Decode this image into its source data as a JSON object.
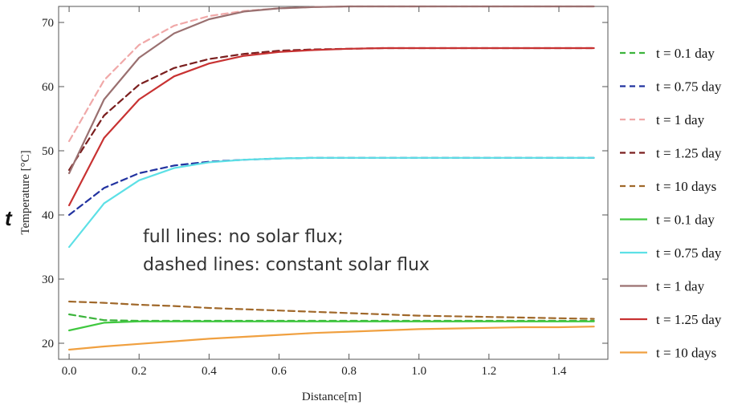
{
  "chart_data": {
    "type": "line",
    "title": "",
    "xlabel": "Distance[m]",
    "ylabel": "Temperature [°C]",
    "xlim": [
      -0.03,
      1.54
    ],
    "ylim": [
      17.5,
      72.5
    ],
    "xticks": [
      "0.0",
      "0.2",
      "0.4",
      "0.6",
      "0.8",
      "1.0",
      "1.2",
      "1.4"
    ],
    "yticks": [
      "20",
      "30",
      "40",
      "50",
      "60",
      "70"
    ],
    "grid": false,
    "legend_position": "right",
    "annotation": [
      "full lines: no solar flux;",
      "dashed lines: constant solar flux"
    ],
    "stray_text": "t",
    "x": [
      0,
      0.1,
      0.2,
      0.3,
      0.4,
      0.5,
      0.6,
      0.7,
      0.8,
      0.9,
      1.0,
      1.1,
      1.2,
      1.3,
      1.4,
      1.5
    ],
    "series": [
      {
        "name": "t = 0.1 day",
        "style": "dashed",
        "color": "#3cb43c",
        "values": [
          24.5,
          23.6,
          23.5,
          23.5,
          23.5,
          23.5,
          23.5,
          23.5,
          23.5,
          23.5,
          23.5,
          23.5,
          23.5,
          23.5,
          23.5,
          23.5
        ]
      },
      {
        "name": "t = 0.75 day",
        "style": "dashed",
        "color": "#2233a0",
        "values": [
          40.0,
          44.2,
          46.5,
          47.7,
          48.3,
          48.6,
          48.8,
          48.9,
          48.9,
          48.9,
          48.9,
          48.9,
          48.9,
          48.9,
          48.9,
          48.9
        ]
      },
      {
        "name": "t = 1 day",
        "style": "dashed",
        "color": "#f0a8a8",
        "values": [
          51.5,
          61.0,
          66.5,
          69.5,
          71.0,
          71.8,
          72.2,
          72.4,
          72.5,
          72.5,
          72.5,
          72.5,
          72.5,
          72.5,
          72.5,
          72.5
        ]
      },
      {
        "name": "t = 1.25 day",
        "style": "dashed",
        "color": "#7a1e1e",
        "values": [
          47.0,
          55.5,
          60.3,
          62.9,
          64.3,
          65.1,
          65.6,
          65.8,
          65.9,
          66.0,
          66.0,
          66.0,
          66.0,
          66.0,
          66.0,
          66.0
        ]
      },
      {
        "name": "t = 10 days",
        "style": "dashed",
        "color": "#a0682a",
        "values": [
          26.5,
          26.3,
          26.0,
          25.8,
          25.5,
          25.3,
          25.1,
          24.9,
          24.7,
          24.5,
          24.3,
          24.2,
          24.1,
          24.0,
          23.9,
          23.8
        ]
      },
      {
        "name": "t = 0.1 day",
        "style": "solid",
        "color": "#40c840",
        "values": [
          22.0,
          23.2,
          23.4,
          23.4,
          23.4,
          23.4,
          23.4,
          23.4,
          23.4,
          23.4,
          23.4,
          23.4,
          23.4,
          23.4,
          23.4,
          23.4
        ]
      },
      {
        "name": "t = 0.75 day",
        "style": "solid",
        "color": "#5de0e6",
        "values": [
          35.0,
          41.8,
          45.4,
          47.3,
          48.2,
          48.6,
          48.8,
          48.9,
          48.9,
          48.9,
          48.9,
          48.9,
          48.9,
          48.9,
          48.9,
          48.9
        ]
      },
      {
        "name": "t = 1 day",
        "style": "solid",
        "color": "#9a7070",
        "values": [
          46.5,
          58.0,
          64.5,
          68.3,
          70.5,
          71.7,
          72.2,
          72.4,
          72.5,
          72.5,
          72.5,
          72.5,
          72.5,
          72.5,
          72.5,
          72.5
        ]
      },
      {
        "name": "t = 1.25 day",
        "style": "solid",
        "color": "#c83232",
        "values": [
          41.5,
          52.0,
          58.0,
          61.6,
          63.6,
          64.8,
          65.4,
          65.7,
          65.9,
          66.0,
          66.0,
          66.0,
          66.0,
          66.0,
          66.0,
          66.0
        ]
      },
      {
        "name": "t = 10 days",
        "style": "solid",
        "color": "#f0a040",
        "values": [
          19.0,
          19.5,
          19.9,
          20.3,
          20.7,
          21.0,
          21.3,
          21.6,
          21.8,
          22.0,
          22.2,
          22.3,
          22.4,
          22.5,
          22.5,
          22.6
        ]
      }
    ]
  }
}
